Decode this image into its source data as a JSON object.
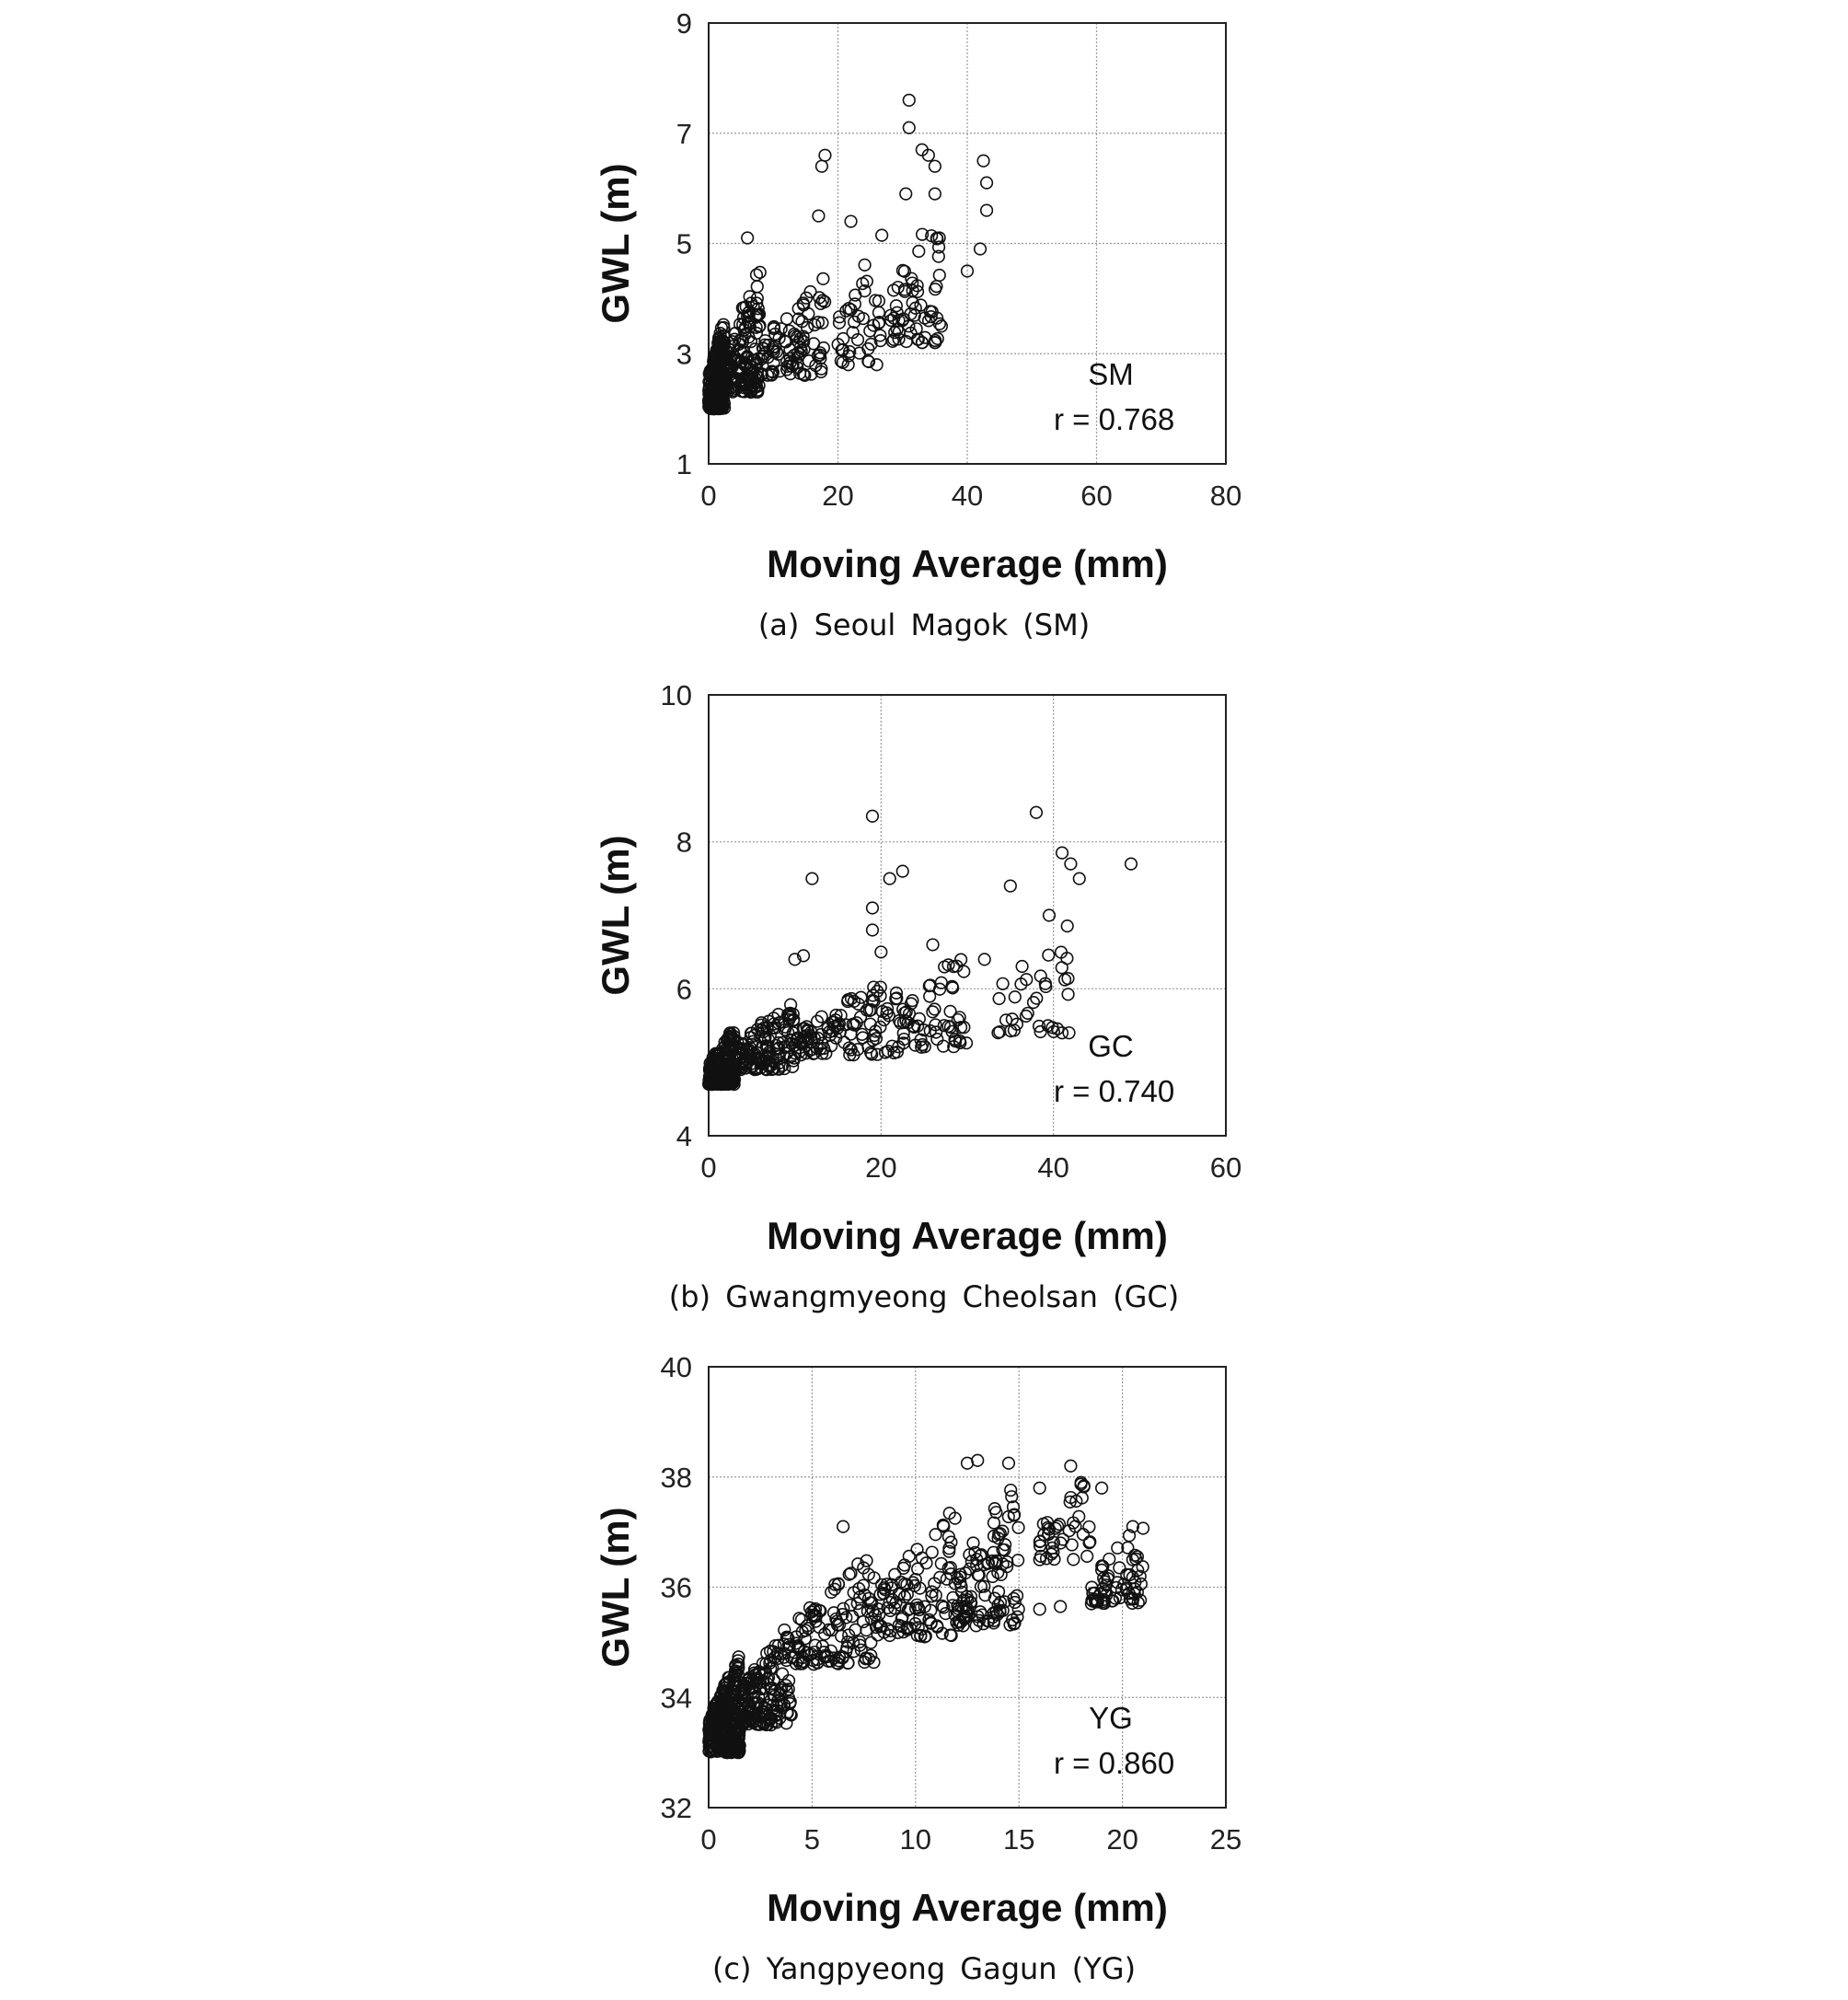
{
  "chart_data": [
    {
      "type": "scatter",
      "caption": "(a) Seoul Magok (SM)",
      "xlabel": "Moving Average (mm)",
      "ylabel": "GWL (m)",
      "xlim": [
        0,
        80
      ],
      "ylim": [
        1,
        9
      ],
      "xticks": [
        "0",
        "20",
        "40",
        "60",
        "80"
      ],
      "yticks": [
        "1",
        "3",
        "5",
        "7",
        "9"
      ],
      "grid": true,
      "annotation": {
        "label": "SM",
        "r": "r = 0.768"
      },
      "clusters": [
        {
          "x": [
            0,
            2.5
          ],
          "y": [
            2.0,
            3.7
          ],
          "n": 260
        },
        {
          "x": [
            2.5,
            8
          ],
          "y": [
            2.3,
            4.6
          ],
          "n": 150
        },
        {
          "x": [
            8,
            18
          ],
          "y": [
            2.6,
            4.5
          ],
          "n": 90
        },
        {
          "x": [
            20,
            27
          ],
          "y": [
            2.8,
            5.4
          ],
          "n": 40
        },
        {
          "x": [
            28,
            36
          ],
          "y": [
            3.2,
            5.9
          ],
          "n": 60
        }
      ],
      "points": [
        [
          31,
          7.6
        ],
        [
          31,
          7.1
        ],
        [
          33,
          6.7
        ],
        [
          34,
          6.6
        ],
        [
          35,
          6.4
        ],
        [
          35,
          5.9
        ],
        [
          30.5,
          5.9
        ],
        [
          18,
          6.6
        ],
        [
          17.5,
          6.4
        ],
        [
          17,
          5.5
        ],
        [
          42.5,
          6.5
        ],
        [
          43,
          6.1
        ],
        [
          43,
          5.6
        ],
        [
          42,
          4.9
        ],
        [
          40,
          4.5
        ],
        [
          36,
          3.5
        ],
        [
          35,
          3.2
        ],
        [
          26,
          2.8
        ],
        [
          22,
          5.4
        ],
        [
          6,
          5.1
        ]
      ]
    },
    {
      "type": "scatter",
      "caption": "(b) Gwangmyeong Cheolsan (GC)",
      "xlabel": "Moving Average (mm)",
      "ylabel": "GWL (m)",
      "xlim": [
        0,
        60
      ],
      "ylim": [
        4,
        10
      ],
      "xticks": [
        "0",
        "20",
        "40",
        "60"
      ],
      "yticks": [
        "4",
        "6",
        "8",
        "10"
      ],
      "grid": true,
      "annotation": {
        "label": "GC",
        "r": "r = 0.740"
      },
      "clusters": [
        {
          "x": [
            0,
            3
          ],
          "y": [
            4.7,
            5.5
          ],
          "n": 220
        },
        {
          "x": [
            3,
            10
          ],
          "y": [
            4.9,
            5.9
          ],
          "n": 140
        },
        {
          "x": [
            10,
            22
          ],
          "y": [
            5.1,
            6.2
          ],
          "n": 110
        },
        {
          "x": [
            22,
            30
          ],
          "y": [
            5.2,
            6.6
          ],
          "n": 60
        },
        {
          "x": [
            33,
            42
          ],
          "y": [
            5.4,
            7.0
          ],
          "n": 35
        }
      ],
      "points": [
        [
          19,
          8.35
        ],
        [
          38,
          8.4
        ],
        [
          21,
          7.5
        ],
        [
          22.5,
          7.6
        ],
        [
          12,
          7.5
        ],
        [
          19,
          7.1
        ],
        [
          41,
          7.85
        ],
        [
          42,
          7.7
        ],
        [
          43,
          7.5
        ],
        [
          49,
          7.7
        ],
        [
          35,
          7.4
        ],
        [
          39.5,
          7.0
        ],
        [
          19,
          6.8
        ],
        [
          20,
          6.5
        ],
        [
          26,
          6.6
        ],
        [
          32,
          6.4
        ],
        [
          10,
          6.4
        ],
        [
          11,
          6.45
        ],
        [
          41,
          5.4
        ]
      ]
    },
    {
      "type": "scatter",
      "caption": "(c) Yangpyeong Gagun (YG)",
      "xlabel": "Moving Average (mm)",
      "ylabel": "GWL (m)",
      "xlim": [
        0,
        25
      ],
      "ylim": [
        32,
        40
      ],
      "xticks": [
        "0",
        "5",
        "10",
        "15",
        "20",
        "25"
      ],
      "yticks": [
        "32",
        "34",
        "36",
        "38",
        "40"
      ],
      "grid": true,
      "annotation": {
        "label": "YG",
        "r": "r = 0.860"
      },
      "clusters": [
        {
          "x": [
            0,
            1.5
          ],
          "y": [
            33.0,
            34.8
          ],
          "n": 320
        },
        {
          "x": [
            1.5,
            4
          ],
          "y": [
            33.5,
            35.4
          ],
          "n": 170
        },
        {
          "x": [
            4,
            8
          ],
          "y": [
            34.6,
            36.7
          ],
          "n": 120
        },
        {
          "x": [
            8,
            12
          ],
          "y": [
            35.1,
            37.5
          ],
          "n": 110
        },
        {
          "x": [
            12,
            15
          ],
          "y": [
            35.3,
            38.2
          ],
          "n": 110
        },
        {
          "x": [
            16,
            18.5
          ],
          "y": [
            36.5,
            38.2
          ],
          "n": 40
        },
        {
          "x": [
            18.5,
            21
          ],
          "y": [
            35.7,
            37.2
          ],
          "n": 60
        }
      ],
      "points": [
        [
          12.5,
          38.25
        ],
        [
          13,
          38.3
        ],
        [
          14.5,
          38.25
        ],
        [
          17.5,
          38.2
        ],
        [
          18,
          37.9
        ],
        [
          19,
          37.8
        ],
        [
          6.5,
          37.1
        ],
        [
          16,
          35.6
        ],
        [
          17,
          35.65
        ],
        [
          18.5,
          35.7
        ],
        [
          19.5,
          35.75
        ],
        [
          20.5,
          37.1
        ],
        [
          20.5,
          35.8
        ],
        [
          20.5,
          36.5
        ],
        [
          16,
          36.5
        ],
        [
          16,
          37.8
        ]
      ]
    }
  ]
}
